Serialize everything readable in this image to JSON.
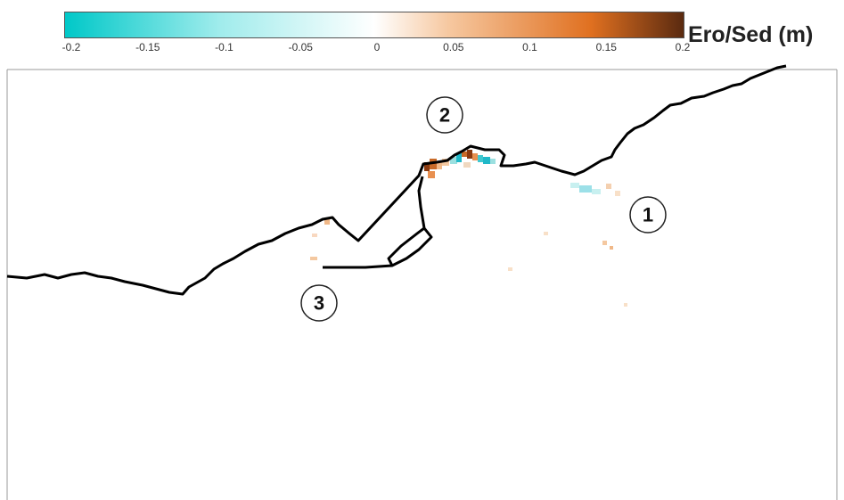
{
  "chart_data": {
    "type": "heatmap",
    "title": "",
    "colorbar": {
      "label": "Ero/Sed (m)",
      "range": [
        -0.2,
        0.2
      ],
      "ticks": [
        "-0.2",
        "-0.15",
        "-0.1",
        "-0.05",
        "0",
        "0.05",
        "0.1",
        "0.15",
        "0.2"
      ],
      "colors": [
        "#00c8c8",
        "#ffffff",
        "#e07020",
        "#5a2a10"
      ]
    },
    "site_labels": [
      "1",
      "2",
      "3"
    ]
  }
}
